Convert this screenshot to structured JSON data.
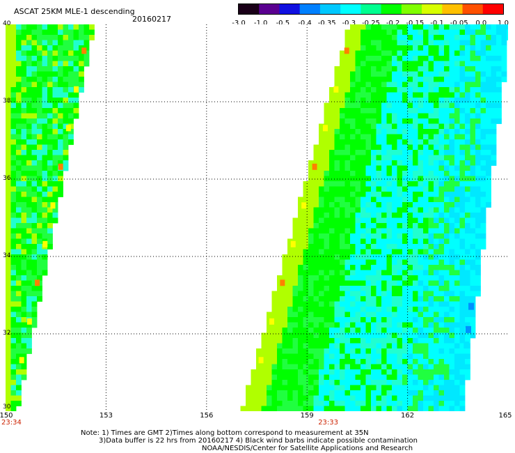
{
  "header": {
    "title": "ASCAT 25KM MLE-1 descending",
    "date": "20160217"
  },
  "colorbar": {
    "labels": [
      "-3.0",
      "-1.0",
      "-0.5",
      "-0.4",
      "-0.35",
      "-0.3",
      "-0.25",
      "-0.2",
      "-0.15",
      "-0.1",
      "-0.05",
      "0.0",
      "1.0"
    ],
    "colors": [
      "#1a0018",
      "#5a0090",
      "#1010e0",
      "#0080ff",
      "#00c8ff",
      "#00ffff",
      "#00ff90",
      "#00ff00",
      "#80ff00",
      "#d8ff00",
      "#ffc000",
      "#ff5000",
      "#ff0000"
    ]
  },
  "map": {
    "lon_labels": [
      "150",
      "153",
      "156",
      "159",
      "162",
      "165"
    ],
    "lat_labels": [
      "40",
      "38",
      "36",
      "34",
      "32",
      "30"
    ],
    "lon_range": [
      150,
      165
    ],
    "lat_range": [
      30,
      40
    ],
    "grid_lons": [
      153,
      156,
      159,
      162
    ],
    "grid_lats": [
      32,
      34,
      36,
      38
    ],
    "time_labels": [
      {
        "lon": 150,
        "text": "23:34"
      },
      {
        "lon": 159,
        "text": "23:33"
      }
    ],
    "colors": {
      "background": "#ffffff",
      "green": "#00ff00",
      "light_green": "#20ff40",
      "cyan": "#00ffff",
      "light_cyan": "#20ffd0",
      "sky_blue": "#00e8ff",
      "blue": "#0090ff",
      "yellow_green": "#b0ff00",
      "yellow": "#ffff00",
      "orange": "#ff8000"
    }
  },
  "notes": {
    "line1": "Note: 1) Times are GMT 2)Times along bottom correspond to measurement at 35N",
    "line2": "3)Data buffer is 22 hrs from 20160217 4) Black wind barbs indicate possible contamination",
    "line3": "NOAA/NESDIS/Center for Satellite Applications and Research"
  }
}
